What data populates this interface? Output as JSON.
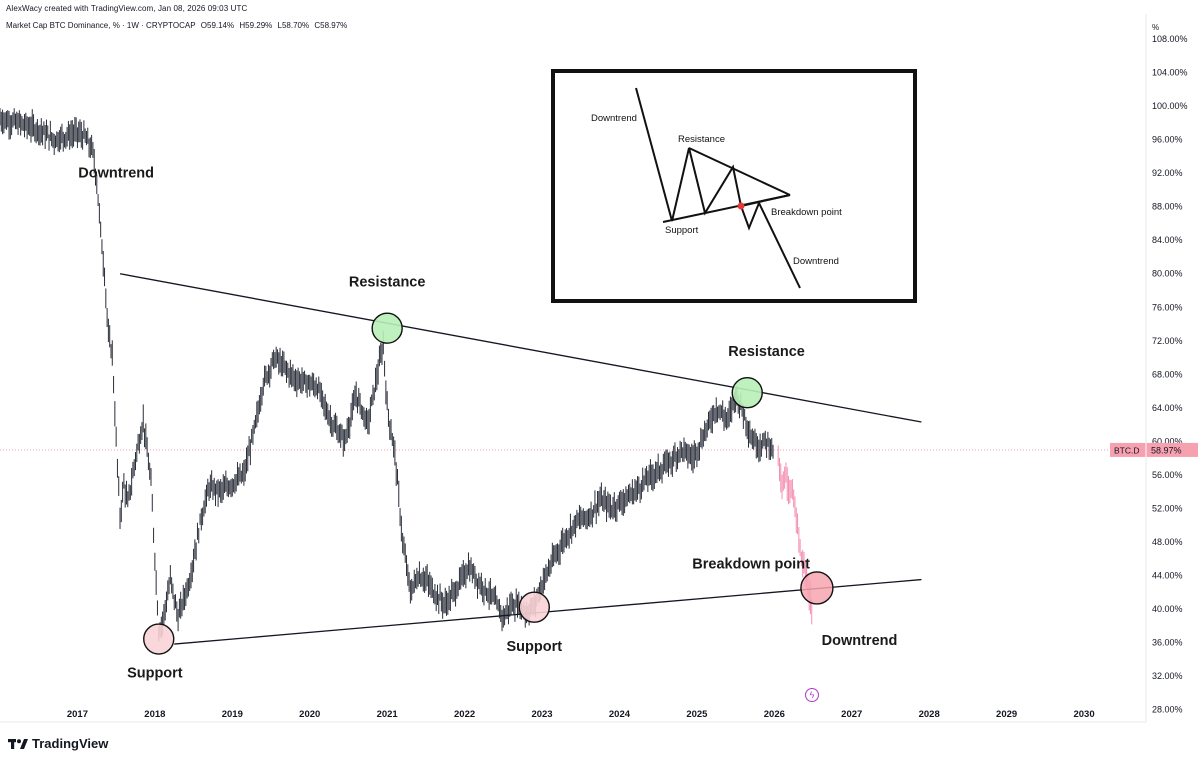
{
  "header": {
    "caption": "AlexWacy created with TradingView.com, Jan 08, 2026 09:03 UTC",
    "symbol_title": "Market Cap BTC Dominance, % · 1W · CRYPTOCAP",
    "ohlc": {
      "open": "O59.14%",
      "high": "H59.29%",
      "low": "L58.70%",
      "close": "C58.97%"
    },
    "unit_label": "%"
  },
  "price_tag": {
    "symbol": "BTC.D",
    "value": "58.97%",
    "color": "#f7a1b0"
  },
  "branding": {
    "name": "TradingView"
  },
  "colors": {
    "candle": "#2a2e39",
    "projection": "#f38fb0",
    "resistance_marker": "#b7f0b7",
    "support_marker": "#f9d3d6",
    "breakdown_marker": "#f7a5b0",
    "trendline": "#131722"
  },
  "chart_data": {
    "type": "line",
    "title": "Market Cap BTC Dominance, %",
    "xlabel": "",
    "ylabel": "",
    "x_ticks": [
      "2017",
      "2018",
      "2019",
      "2020",
      "2021",
      "2022",
      "2023",
      "2024",
      "2025",
      "2026",
      "2027",
      "2028",
      "2029",
      "2030"
    ],
    "y_ticks": [
      "108.00%",
      "104.00%",
      "100.00%",
      "96.00%",
      "92.00%",
      "88.00%",
      "84.00%",
      "80.00%",
      "76.00%",
      "72.00%",
      "68.00%",
      "64.00%",
      "60.00%",
      "56.00%",
      "52.00%",
      "48.00%",
      "44.00%",
      "40.00%",
      "36.00%",
      "32.00%",
      "28.00%"
    ],
    "ylim": [
      26.5,
      111
    ],
    "xlim": [
      2016.0,
      2030.8
    ],
    "grid": false,
    "series": [
      {
        "x": [
          2016.0,
          2016.3,
          2016.5,
          2016.7,
          2016.9,
          2017.0,
          2017.1,
          2017.2,
          2017.25,
          2017.3,
          2017.35,
          2017.4,
          2017.45,
          2017.5,
          2017.55,
          2017.6,
          2017.65,
          2017.75,
          2017.85,
          2017.95,
          2018.05,
          2018.1,
          2018.2,
          2018.3,
          2018.45,
          2018.6,
          2018.7,
          2018.85,
          2019.0,
          2019.15,
          2019.3,
          2019.4,
          2019.55,
          2019.65,
          2019.8,
          2019.95,
          2020.1,
          2020.2,
          2020.3,
          2020.45,
          2020.6,
          2020.75,
          2020.85,
          2020.95,
          2021.0,
          2021.1,
          2021.2,
          2021.3,
          2021.4,
          2021.5,
          2021.6,
          2021.75,
          2021.9,
          2022.05,
          2022.2,
          2022.35,
          2022.5,
          2022.6,
          2022.7,
          2022.8,
          2022.9,
          2023.0,
          2023.15,
          2023.3,
          2023.45,
          2023.6,
          2023.75,
          2023.9,
          2024.05,
          2024.2,
          2024.35,
          2024.5,
          2024.65,
          2024.8,
          2024.95,
          2025.1,
          2025.25,
          2025.4,
          2025.5,
          2025.6,
          2025.7,
          2025.8,
          2025.9,
          2026.0
        ],
        "values": [
          98.5,
          97.8,
          97.2,
          96.0,
          96.6,
          96.8,
          96.3,
          94.5,
          91.0,
          85.0,
          80.0,
          72.5,
          70.5,
          60.0,
          51.0,
          55.0,
          52.5,
          58.0,
          62.5,
          55.0,
          37.5,
          38.5,
          43.5,
          39.0,
          43.5,
          51.0,
          54.5,
          54.0,
          55.0,
          56.0,
          62.0,
          67.0,
          70.0,
          69.0,
          67.5,
          67.0,
          66.5,
          64.0,
          62.0,
          60.0,
          65.5,
          62.0,
          67.0,
          71.5,
          64.0,
          58.5,
          48.0,
          42.0,
          44.0,
          43.5,
          42.0,
          40.5,
          42.5,
          45.0,
          43.0,
          41.5,
          39.0,
          40.5,
          40.5,
          39.5,
          40.5,
          43.0,
          46.0,
          48.5,
          50.5,
          51.0,
          53.0,
          52.0,
          53.0,
          54.0,
          55.5,
          56.5,
          57.5,
          59.0,
          58.0,
          61.0,
          64.0,
          62.5,
          65.5,
          63.5,
          60.5,
          59.5,
          60.0,
          58.97
        ]
      },
      {
        "x": [
          2026.05,
          2026.1,
          2026.15,
          2026.2,
          2026.25,
          2026.3,
          2026.35,
          2026.4,
          2026.45,
          2026.5
        ],
        "values": [
          58.0,
          55.0,
          56.0,
          54.5,
          53.0,
          49.5,
          46.0,
          44.5,
          42.0,
          38.0
        ]
      }
    ],
    "trendlines": [
      {
        "x": [
          2017.55,
          2027.9
        ],
        "values": [
          80.0,
          62.3
        ]
      },
      {
        "x": [
          2018.25,
          2027.9
        ],
        "values": [
          35.8,
          43.5
        ]
      }
    ],
    "markers": [
      {
        "x": 2021.0,
        "y": 73.5,
        "kind": "resistance"
      },
      {
        "x": 2025.65,
        "y": 65.8,
        "kind": "resistance"
      },
      {
        "x": 2018.05,
        "y": 36.4,
        "kind": "support"
      },
      {
        "x": 2022.9,
        "y": 40.2,
        "kind": "support"
      },
      {
        "x": 2026.55,
        "y": 42.5,
        "kind": "breakdown"
      }
    ],
    "annotations": [
      {
        "text": "Downtrend",
        "x": 2017.5,
        "y": 91.5
      },
      {
        "text": "Resistance",
        "x": 2021.0,
        "y": 78.5
      },
      {
        "text": "Resistance",
        "x": 2025.9,
        "y": 70.2
      },
      {
        "text": "Breakdown point",
        "x": 2025.7,
        "y": 44.8
      },
      {
        "text": "Support",
        "x": 2022.9,
        "y": 35.0
      },
      {
        "text": "Support",
        "x": 2018.0,
        "y": 31.8
      },
      {
        "text": "Downtrend",
        "x": 2027.1,
        "y": 35.7
      }
    ],
    "inset_diagram": {
      "labels": {
        "downtrend_top": "Downtrend",
        "resistance": "Resistance",
        "support": "Support",
        "breakdown": "Breakdown point",
        "downtrend_bottom": "Downtrend"
      }
    }
  }
}
